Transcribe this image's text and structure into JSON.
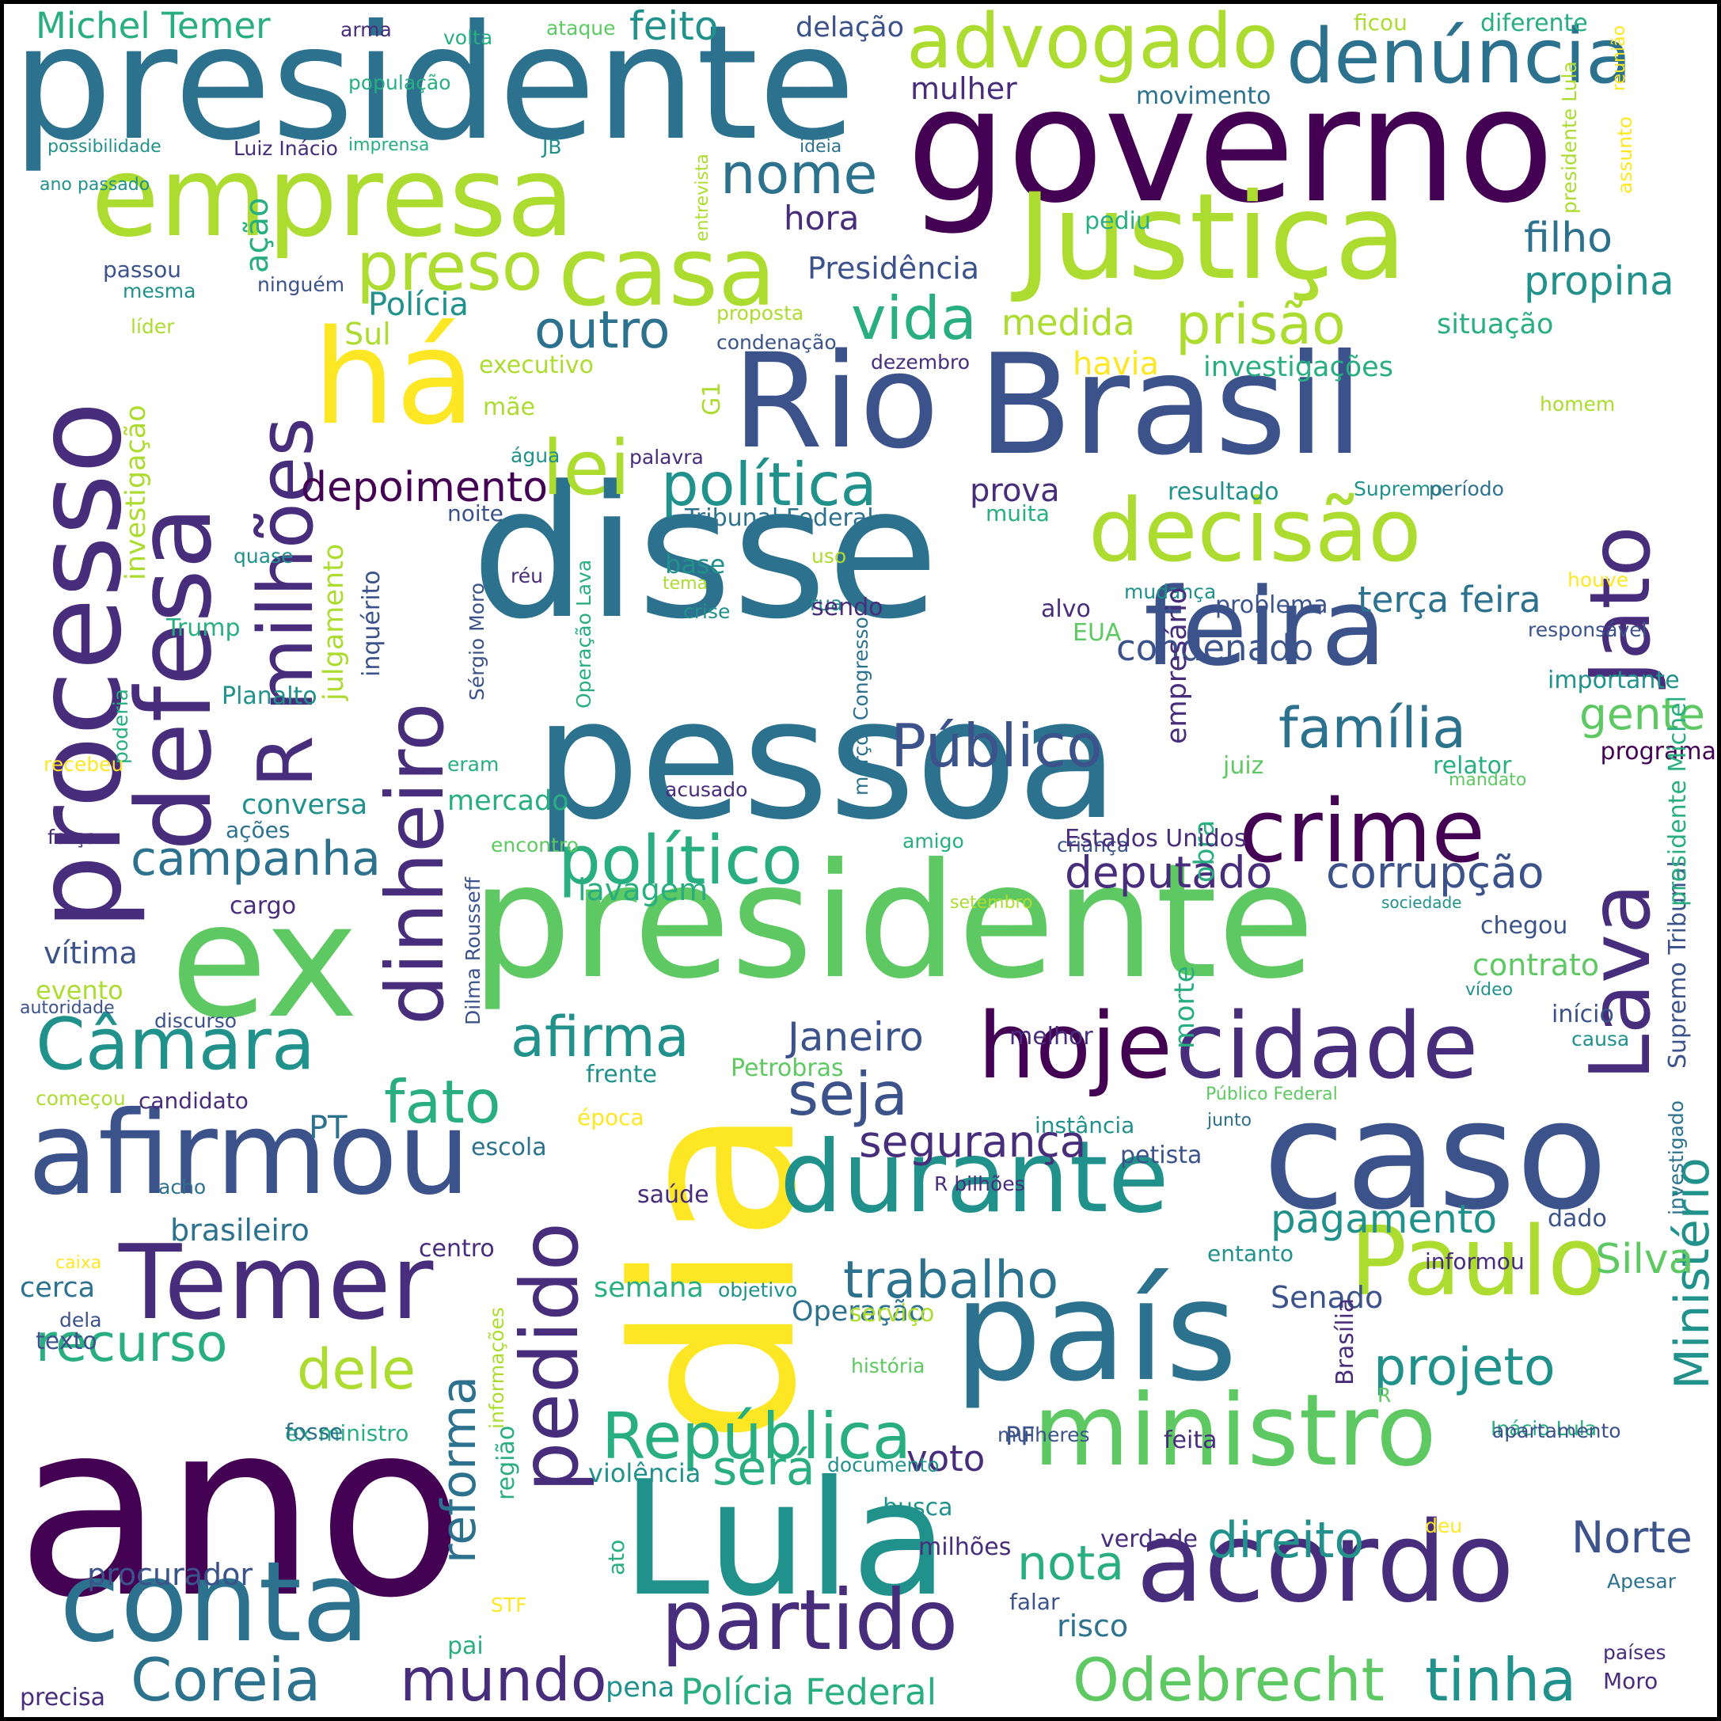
{
  "palette": {
    "dark_purple": "#440154",
    "indigo": "#472d7b",
    "blue_violet": "#3b528b",
    "steel_blue": "#2c728e",
    "teal": "#21918c",
    "sea_green": "#28ae80",
    "green": "#5ec962",
    "lime": "#addc30",
    "yellow": "#fde725",
    "background": "#ffffff",
    "border": "#000000"
  },
  "words": [
    {
      "text": "ano"
    },
    {
      "text": "presidente"
    },
    {
      "text": "governo"
    },
    {
      "text": "disse"
    },
    {
      "text": "pessoa"
    },
    {
      "text": "presidente"
    },
    {
      "text": "ex"
    },
    {
      "text": "Brasil"
    },
    {
      "text": "dia"
    },
    {
      "text": "Lula"
    },
    {
      "text": "caso"
    },
    {
      "text": "país"
    },
    {
      "text": "processo"
    },
    {
      "text": "empresa"
    },
    {
      "text": "Justiça"
    },
    {
      "text": "afirmou"
    },
    {
      "text": "há"
    },
    {
      "text": "Rio"
    },
    {
      "text": "defesa"
    },
    {
      "text": "Temer"
    },
    {
      "text": "conta"
    },
    {
      "text": "acordo"
    },
    {
      "text": "ministro"
    },
    {
      "text": "Lava"
    },
    {
      "text": "Jato"
    },
    {
      "text": "durante"
    },
    {
      "text": "feira"
    },
    {
      "text": "dinheiro"
    },
    {
      "text": "hoje"
    },
    {
      "text": "Paulo"
    },
    {
      "text": "pedido"
    },
    {
      "text": "casa"
    },
    {
      "text": "denúncia"
    },
    {
      "text": "advogado"
    },
    {
      "text": "cidade"
    },
    {
      "text": "decisão"
    },
    {
      "text": "crime"
    },
    {
      "text": "partido"
    },
    {
      "text": "Odebrecht"
    },
    {
      "text": "tinha"
    },
    {
      "text": "Coreia"
    },
    {
      "text": "mundo"
    },
    {
      "text": "República"
    },
    {
      "text": "Câmara"
    },
    {
      "text": "Ministério"
    },
    {
      "text": "Público"
    },
    {
      "text": "político"
    },
    {
      "text": "política"
    },
    {
      "text": "lei"
    },
    {
      "text": "preso"
    },
    {
      "text": "prisão"
    },
    {
      "text": "vida"
    },
    {
      "text": "outro"
    },
    {
      "text": "nome"
    },
    {
      "text": "família"
    },
    {
      "text": "projeto"
    },
    {
      "text": "trabalho"
    },
    {
      "text": "fato"
    },
    {
      "text": "afirma"
    },
    {
      "text": "seja"
    },
    {
      "text": "R milhões"
    },
    {
      "text": "recurso"
    },
    {
      "text": "dele"
    },
    {
      "text": "campanha"
    },
    {
      "text": "corrupção"
    },
    {
      "text": "deputado"
    },
    {
      "text": "depoimento"
    },
    {
      "text": "filho"
    },
    {
      "text": "propina"
    },
    {
      "text": "direito"
    },
    {
      "text": "Norte"
    },
    {
      "text": "segurança"
    },
    {
      "text": "pagamento"
    },
    {
      "text": "Silva"
    },
    {
      "text": "Janeiro"
    },
    {
      "text": "gente"
    },
    {
      "text": "será"
    },
    {
      "text": "voto"
    },
    {
      "text": "nota"
    },
    {
      "text": "reforma"
    },
    {
      "text": "Polícia Federal"
    },
    {
      "text": "Michel Temer"
    },
    {
      "text": "feito"
    },
    {
      "text": "delação"
    },
    {
      "text": "mulher"
    },
    {
      "text": "hora"
    },
    {
      "text": "Presidência"
    },
    {
      "text": "Polícia"
    },
    {
      "text": "medida"
    },
    {
      "text": "situação"
    },
    {
      "text": "investigações"
    },
    {
      "text": "havia"
    },
    {
      "text": "Sul"
    },
    {
      "text": "ação"
    },
    {
      "text": "passou"
    },
    {
      "text": "mesma"
    },
    {
      "text": "ninguém"
    },
    {
      "text": "proposta"
    },
    {
      "text": "condenação"
    },
    {
      "text": "dezembro"
    },
    {
      "text": "executivo"
    },
    {
      "text": "líder"
    },
    {
      "text": "investigação"
    },
    {
      "text": "mãe"
    },
    {
      "text": "G1"
    },
    {
      "text": "água"
    },
    {
      "text": "palavra"
    },
    {
      "text": "prova"
    },
    {
      "text": "resultado"
    },
    {
      "text": "Supremo"
    },
    {
      "text": "período"
    },
    {
      "text": "homem"
    },
    {
      "text": "noite"
    },
    {
      "text": "muita"
    },
    {
      "text": "Tribunal Federal"
    },
    {
      "text": "julgamento"
    },
    {
      "text": "inquérito"
    },
    {
      "text": "Sérgio Moro"
    },
    {
      "text": "Operação Lava"
    },
    {
      "text": "quase"
    },
    {
      "text": "réu"
    },
    {
      "text": "base"
    },
    {
      "text": "tema"
    },
    {
      "text": "uso"
    },
    {
      "text": "crise"
    },
    {
      "text": "rua"
    },
    {
      "text": "sendo"
    },
    {
      "text": "alvo"
    },
    {
      "text": "mudança"
    },
    {
      "text": "problema"
    },
    {
      "text": "terça feira"
    },
    {
      "text": "responsável"
    },
    {
      "text": "houve"
    },
    {
      "text": "Trump"
    },
    {
      "text": "Planalto"
    },
    {
      "text": "poderia"
    },
    {
      "text": "recebeu"
    },
    {
      "text": "eram"
    },
    {
      "text": "Congresso"
    },
    {
      "text": "março"
    },
    {
      "text": "EUA"
    },
    {
      "text": "condenado"
    },
    {
      "text": "importante"
    },
    {
      "text": "obra"
    },
    {
      "text": "empresário"
    },
    {
      "text": "juiz"
    },
    {
      "text": "relator"
    },
    {
      "text": "mandato"
    },
    {
      "text": "programa"
    },
    {
      "text": "conversa"
    },
    {
      "text": "ações"
    },
    {
      "text": "mercado"
    },
    {
      "text": "acusado"
    },
    {
      "text": "força"
    },
    {
      "text": "encontro"
    },
    {
      "text": "criança"
    },
    {
      "text": "amigo"
    },
    {
      "text": "Estados Unidos"
    },
    {
      "text": "lavagem"
    },
    {
      "text": "setembro"
    },
    {
      "text": "sociedade"
    },
    {
      "text": "cargo"
    },
    {
      "text": "vítima"
    },
    {
      "text": "chegou"
    },
    {
      "text": "contrato"
    },
    {
      "text": "evento"
    },
    {
      "text": "autoridade"
    },
    {
      "text": "discurso"
    },
    {
      "text": "Dilma Rousseff"
    },
    {
      "text": "morte"
    },
    {
      "text": "melhor"
    },
    {
      "text": "início"
    },
    {
      "text": "causa"
    },
    {
      "text": "vídeo"
    },
    {
      "text": "Supremo Tribunal"
    },
    {
      "text": "presidente Michel"
    },
    {
      "text": "PT"
    },
    {
      "text": "começou"
    },
    {
      "text": "candidato"
    },
    {
      "text": "frente"
    },
    {
      "text": "Petrobras"
    },
    {
      "text": "época"
    },
    {
      "text": "instância"
    },
    {
      "text": "junto"
    },
    {
      "text": "Público Federal"
    },
    {
      "text": "petista"
    },
    {
      "text": "investigado"
    },
    {
      "text": "escola"
    },
    {
      "text": "acho"
    },
    {
      "text": "saúde"
    },
    {
      "text": "R bilhões"
    },
    {
      "text": "dado"
    },
    {
      "text": "brasileiro"
    },
    {
      "text": "centro"
    },
    {
      "text": "caixa"
    },
    {
      "text": "cerca"
    },
    {
      "text": "semana"
    },
    {
      "text": "objetivo"
    },
    {
      "text": "entanto"
    },
    {
      "text": "informou"
    },
    {
      "text": "dela"
    },
    {
      "text": "informações"
    },
    {
      "text": "Operação"
    },
    {
      "text": "Senado"
    },
    {
      "text": "história"
    },
    {
      "text": "R"
    },
    {
      "text": "texto"
    },
    {
      "text": "serviço"
    },
    {
      "text": "ex ministro"
    },
    {
      "text": "PF"
    },
    {
      "text": "Brasília"
    },
    {
      "text": "fosse"
    },
    {
      "text": "Inácio Lula"
    },
    {
      "text": "mulheres"
    },
    {
      "text": "apartamento"
    },
    {
      "text": "feita"
    },
    {
      "text": "região"
    },
    {
      "text": "violência"
    },
    {
      "text": "documento"
    },
    {
      "text": "busca"
    },
    {
      "text": "procurador"
    },
    {
      "text": "ato"
    },
    {
      "text": "deu"
    },
    {
      "text": "milhões"
    },
    {
      "text": "verdade"
    },
    {
      "text": "falar"
    },
    {
      "text": "Apesar"
    },
    {
      "text": "STF"
    },
    {
      "text": "pai"
    },
    {
      "text": "risco"
    },
    {
      "text": "pena"
    },
    {
      "text": "países"
    },
    {
      "text": "Moro"
    },
    {
      "text": "precisa"
    },
    {
      "text": "arma"
    },
    {
      "text": "volta"
    },
    {
      "text": "ataque"
    },
    {
      "text": "população"
    },
    {
      "text": "ficou"
    },
    {
      "text": "diferente"
    },
    {
      "text": "reunião"
    },
    {
      "text": "movimento"
    },
    {
      "text": "ideia"
    },
    {
      "text": "presidente Lula"
    },
    {
      "text": "assunto"
    },
    {
      "text": "possibilidade"
    },
    {
      "text": "Luiz Inácio"
    },
    {
      "text": "imprensa"
    },
    {
      "text": "JB"
    },
    {
      "text": "entrevista"
    },
    {
      "text": "ano passado"
    },
    {
      "text": "pediu"
    }
  ]
}
